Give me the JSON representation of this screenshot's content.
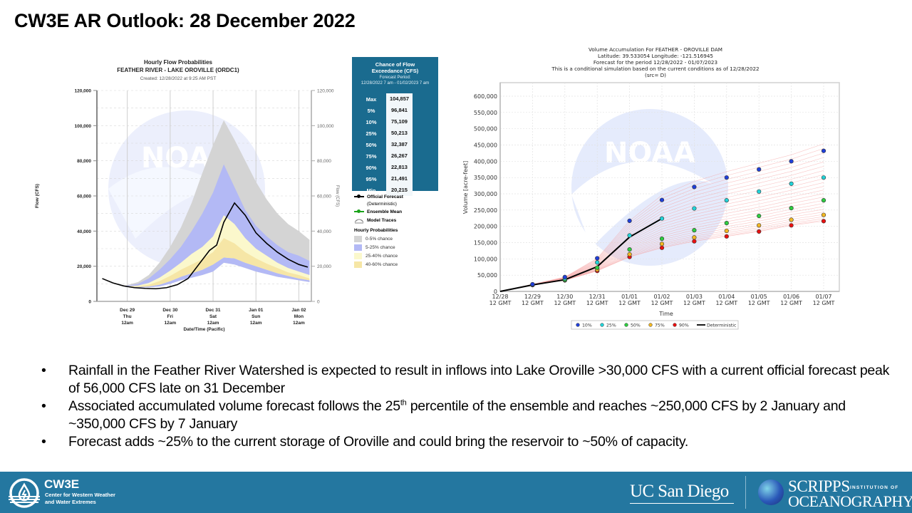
{
  "slide": {
    "title": "CW3E AR Outlook: 28 December 2022"
  },
  "left_chart": {
    "title_line1": "Hourly Flow Probabilities",
    "title_line2": "FEATHER RIVER - LAKE OROVILLE (ORDC1)",
    "created": "Created: 12/28/2022 at 9:25 AM PST",
    "exceedance": {
      "title_line1": "Chance of Flow",
      "title_line2": "Exceedance (CFS)",
      "period_label": "Forecast Period:",
      "period": "12/28/2022 7 am - 01/02/2023 7 am",
      "rows": [
        {
          "label": "Max",
          "value": "104,857"
        },
        {
          "label": "5%",
          "value": "96,841"
        },
        {
          "label": "10%",
          "value": "75,109"
        },
        {
          "label": "25%",
          "value": "50,213"
        },
        {
          "label": "50%",
          "value": "32,387"
        },
        {
          "label": "75%",
          "value": "26,267"
        },
        {
          "label": "90%",
          "value": "22,813"
        },
        {
          "label": "95%",
          "value": "21,491"
        },
        {
          "label": "Min",
          "value": "20,215"
        }
      ]
    },
    "legend": {
      "official": "Official Forecast",
      "official_sub": "(Deterministic)",
      "ensemble": "Ensemble Mean",
      "traces": "Model Traces",
      "prob_header": "Hourly Probabilities",
      "bands": [
        {
          "label": "0-5% chance",
          "color": "#d4d4d4"
        },
        {
          "label": "5-25% chance",
          "color": "#b3b9f5"
        },
        {
          "label": "25-40% chance",
          "color": "#fbf8cc"
        },
        {
          "label": "40-60% chance",
          "color": "#f6e6a6"
        }
      ]
    },
    "watermark": "NOAA"
  },
  "right_chart": {
    "title_lines": [
      "Volume Accumulation For FEATHER - OROVILLE DAM",
      "Latitude: 39.533054 Longitude: -121.516945",
      "Forecast for the period 12/28/2022 - 01/07/2023",
      "This is a conditional simulation based on the current conditions as of 12/28/2022",
      "(src= D)"
    ]
  },
  "chart_data": [
    {
      "type": "area",
      "title": "Hourly Flow Probabilities - FEATHER RIVER - LAKE OROVILLE (ORDC1)",
      "xlabel": "Date/Time (Pacific)",
      "ylabel": "Flow (CFS)",
      "ylabel_right": "Flow (CFS)",
      "ylim": [
        0,
        120000
      ],
      "yticks": [
        "0",
        "20,000",
        "40,000",
        "60,000",
        "80,000",
        "100,000",
        "120,000"
      ],
      "x_hours_range": [
        -17,
        103
      ],
      "xticks": [
        {
          "h": 0,
          "l1": "Dec 29",
          "l2": "Thu",
          "l3": "12am"
        },
        {
          "h": 24,
          "l1": "Dec 30",
          "l2": "Fri",
          "l3": "12am"
        },
        {
          "h": 48,
          "l1": "Dec 31",
          "l2": "Sat",
          "l3": "12am"
        },
        {
          "h": 72,
          "l1": "Jan 01",
          "l2": "Sun",
          "l3": "12am"
        },
        {
          "h": 96,
          "l1": "Jan 02",
          "l2": "Mon",
          "l3": "12am"
        }
      ],
      "grid": true,
      "x": [
        -1,
        6,
        12,
        18,
        24,
        30,
        36,
        42,
        48,
        54,
        60,
        66,
        72,
        78,
        84,
        90,
        96,
        102
      ],
      "bands": {
        "p0_hi": [
          9000,
          11000,
          15000,
          22000,
          31000,
          42000,
          56000,
          73000,
          89000,
          103000,
          92000,
          80000,
          68000,
          58000,
          50000,
          44000,
          40000,
          35000
        ],
        "p5_hi": [
          8800,
          10000,
          13000,
          18000,
          24000,
          31000,
          40000,
          50000,
          62000,
          78000,
          65000,
          52000,
          43000,
          37000,
          32000,
          28000,
          26000,
          23000
        ],
        "p25_hi": [
          8600,
          9000,
          10500,
          13500,
          17500,
          22000,
          27000,
          31000,
          37000,
          49000,
          44000,
          36000,
          30000,
          26000,
          22000,
          19000,
          17000,
          15000
        ],
        "p40_hi": [
          8500,
          8600,
          9500,
          11500,
          14500,
          18000,
          21000,
          24000,
          28000,
          36000,
          33000,
          28000,
          24500,
          21500,
          19000,
          16500,
          15000,
          13000
        ],
        "p40_lo": [
          8400,
          8200,
          8500,
          9500,
          11500,
          14000,
          16000,
          18000,
          21000,
          25000,
          24500,
          22000,
          20000,
          18000,
          16000,
          14500,
          13000,
          12000
        ],
        "p5_lo": [
          8200,
          7800,
          8000,
          8500,
          10000,
          12000,
          13500,
          15000,
          17000,
          22000,
          21000,
          19000,
          17000,
          15500,
          14000,
          13000,
          12000,
          11000
        ]
      },
      "series": [
        {
          "name": "Official Forecast (Deterministic)",
          "x": [
            -14,
            -8,
            -2,
            4,
            10,
            16,
            22,
            28,
            34,
            40,
            46,
            50,
            54,
            60,
            66,
            72,
            78,
            84,
            90,
            96,
            101
          ],
          "values": [
            13000,
            10500,
            8800,
            7800,
            7400,
            7200,
            7800,
            9500,
            13000,
            21000,
            29000,
            32000,
            45000,
            56000,
            49000,
            39000,
            33000,
            28000,
            24000,
            21000,
            19500
          ]
        }
      ]
    },
    {
      "type": "scatter",
      "title": "Volume Accumulation For FEATHER - OROVILLE DAM",
      "xlabel": "Time",
      "ylabel": "Volume [acre-feet]",
      "ylim": [
        0,
        600000
      ],
      "yticks": [
        "0",
        "50,000",
        "100,000",
        "150,000",
        "200,000",
        "250,000",
        "300,000",
        "350,000",
        "400,000",
        "450,000",
        "500,000",
        "550,000",
        "600,000"
      ],
      "categories": [
        "12/28",
        "12/29",
        "12/30",
        "12/31",
        "01/01",
        "01/02",
        "01/03",
        "01/04",
        "01/05",
        "01/06",
        "01/07"
      ],
      "category_sub": "12 GMT",
      "grid": true,
      "legend_position": "bottom",
      "series": [
        {
          "name": "10%",
          "color": "#1f3fd9",
          "values": [
            null,
            22000,
            44000,
            102000,
            217000,
            281000,
            321000,
            350000,
            375000,
            400000,
            432000
          ]
        },
        {
          "name": "25%",
          "color": "#22d3d8",
          "values": [
            null,
            21000,
            40000,
            89000,
            172000,
            224000,
            255000,
            280000,
            307000,
            331000,
            350000
          ]
        },
        {
          "name": "50%",
          "color": "#2ecc40",
          "values": [
            null,
            20500,
            36000,
            73000,
            129000,
            162000,
            188000,
            210000,
            232000,
            256000,
            280000
          ]
        },
        {
          "name": "75%",
          "color": "#f2b722",
          "values": [
            null,
            20000,
            35000,
            67000,
            114000,
            146000,
            166000,
            186000,
            203000,
            220000,
            235000
          ]
        },
        {
          "name": "90%",
          "color": "#e81010",
          "values": [
            null,
            19500,
            34000,
            63000,
            106000,
            134000,
            154000,
            169000,
            184000,
            203000,
            216000
          ]
        },
        {
          "name": "Deterministic",
          "color": "#000000",
          "values": [
            0,
            20000,
            36000,
            76000,
            167000,
            224000,
            null,
            null,
            null,
            null,
            null
          ]
        }
      ]
    }
  ],
  "bullets": [
    {
      "text": "Rainfall in the Feather River Watershed is expected to result in inflows into Lake Oroville >30,000 CFS with a current official forecast peak of 56,000 CFS late on 31 December"
    },
    {
      "text_before": "Associated accumulated volume forecast follows the 25",
      "sup": "th",
      "text_after": " percentile of the ensemble and reaches ~250,000 CFS by 2 January and ~350,000 CFS by 7 January"
    },
    {
      "text": "Forecast adds ~25% to the current storage of Oroville and could bring the reservoir to ~50% of capacity."
    }
  ],
  "bullet_glyph": "•",
  "footer": {
    "bg_color": "#2477a0",
    "cw3e_name": "CW3E",
    "cw3e_sub1": "Center for Western Weather",
    "cw3e_sub2": "and Water Extremes",
    "ucsd": "UC San Diego",
    "scripps_1": "SCRIPPS",
    "scripps_1b": "INSTITUTION OF",
    "scripps_2": "OCEANOGRAPHY"
  }
}
